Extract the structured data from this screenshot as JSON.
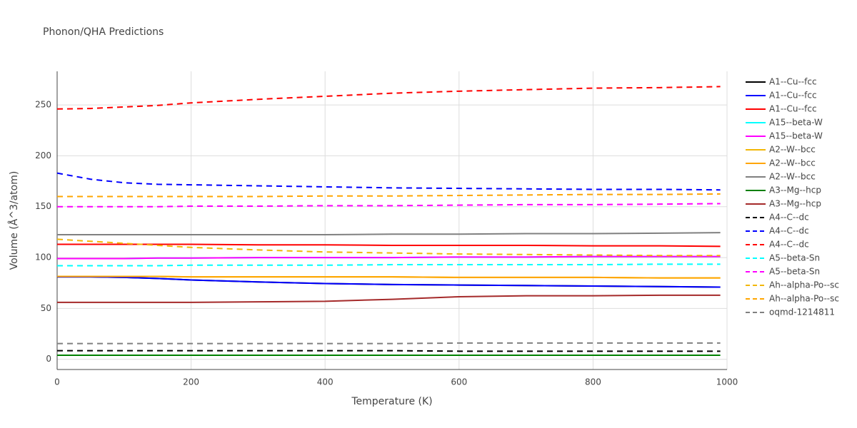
{
  "chart_data": {
    "type": "line",
    "title": "Phonon/QHA Predictions",
    "x_label": "Temperature (K)",
    "y_label": "Volume (Å^3/atom)",
    "x": [
      0,
      50,
      100,
      150,
      200,
      300,
      400,
      500,
      600,
      700,
      800,
      900,
      990
    ],
    "xlim": [
      0,
      1000
    ],
    "xticks": [
      0,
      200,
      400,
      600,
      800,
      1000
    ],
    "ylim": [
      -10,
      283
    ],
    "yticks": [
      0,
      50,
      100,
      150,
      200,
      250
    ],
    "grid": true,
    "legend": "right",
    "series": [
      {
        "name": "A1--Cu--fcc",
        "color": "#000000",
        "dash": "solid",
        "values": [
          81,
          81,
          80.5,
          79.5,
          78,
          76,
          74.5,
          73.5,
          73,
          72.5,
          72,
          71.5,
          71
        ]
      },
      {
        "name": "A1--Cu--fcc",
        "color": "#0000ff",
        "dash": "solid",
        "values": [
          81,
          81,
          80.5,
          79.5,
          78,
          76,
          74.5,
          73.5,
          73,
          72.5,
          72,
          71.5,
          71
        ]
      },
      {
        "name": "A1--Cu--fcc",
        "color": "#ff0000",
        "dash": "solid",
        "values": [
          113,
          113,
          113,
          113,
          113,
          112.5,
          112.5,
          112,
          112,
          112,
          111.5,
          111.5,
          111
        ]
      },
      {
        "name": "A15--beta-W",
        "color": "#00ffff",
        "dash": "solid",
        "values": [
          99,
          99,
          99,
          99.5,
          99.5,
          100,
          100,
          100,
          100.5,
          100.5,
          101,
          101,
          101
        ]
      },
      {
        "name": "A15--beta-W",
        "color": "#ff00ff",
        "dash": "solid",
        "values": [
          99,
          99,
          99,
          99.5,
          99.5,
          100,
          100,
          100,
          100.5,
          100.5,
          101,
          101,
          101
        ]
      },
      {
        "name": "A2--W--bcc",
        "color": "#f2b705",
        "dash": "solid",
        "values": [
          81.5,
          81.5,
          81.5,
          81.5,
          81,
          81,
          81,
          81,
          80.5,
          80.5,
          80.5,
          80,
          80
        ]
      },
      {
        "name": "A2--W--bcc",
        "color": "#ffa500",
        "dash": "solid",
        "values": [
          81.5,
          81.5,
          81.5,
          81.5,
          81,
          81,
          81,
          81,
          80.5,
          80.5,
          80.5,
          80,
          80
        ]
      },
      {
        "name": "A2--W--bcc",
        "color": "#808080",
        "dash": "solid",
        "values": [
          122.5,
          122.5,
          122.5,
          122.5,
          122.5,
          122.5,
          122.5,
          123,
          123,
          123.5,
          123.5,
          124,
          124.5
        ]
      },
      {
        "name": "A3--Mg--hcp",
        "color": "#008000",
        "dash": "solid",
        "values": [
          4,
          4,
          4,
          4,
          4,
          4,
          4,
          4,
          4,
          4,
          4,
          4,
          4
        ]
      },
      {
        "name": "A3--Mg--hcp",
        "color": "#a52a2a",
        "dash": "solid",
        "values": [
          56,
          56,
          56,
          56,
          56,
          56.5,
          57,
          59,
          61.5,
          62.5,
          62.5,
          63,
          63
        ]
      },
      {
        "name": "A4--C--dc",
        "color": "#000000",
        "dash": "dash",
        "values": [
          8.5,
          8.5,
          8.5,
          8.5,
          8.5,
          8.5,
          8.5,
          8.5,
          8,
          8,
          8,
          8,
          8
        ]
      },
      {
        "name": "A4--C--dc",
        "color": "#0000ff",
        "dash": "dash",
        "values": [
          183,
          177,
          173.5,
          172,
          171.5,
          170.5,
          169.5,
          168.5,
          168,
          167.5,
          167,
          167,
          166.5
        ]
      },
      {
        "name": "A4--C--dc",
        "color": "#ff0000",
        "dash": "dash",
        "values": [
          246,
          246.5,
          248,
          249.5,
          252,
          255.5,
          258.5,
          261.5,
          263.5,
          265,
          266.5,
          267,
          268
        ]
      },
      {
        "name": "A5--beta-Sn",
        "color": "#00ffff",
        "dash": "dash",
        "values": [
          92,
          92,
          92,
          92,
          92.5,
          92.5,
          92.5,
          93,
          93,
          93,
          93,
          93.5,
          93.5
        ]
      },
      {
        "name": "A5--beta-Sn",
        "color": "#ff00ff",
        "dash": "dash",
        "values": [
          150,
          150,
          150,
          150,
          150.5,
          150.5,
          151,
          151,
          151.5,
          152,
          152,
          152.5,
          153
        ]
      },
      {
        "name": "Ah--alpha-Po--sc",
        "color": "#f2b705",
        "dash": "dash",
        "values": [
          118,
          116,
          114,
          112,
          110,
          107.5,
          105.5,
          104.5,
          103.5,
          103,
          102.5,
          102,
          102
        ]
      },
      {
        "name": "Ah--alpha-Po--sc",
        "color": "#ffa500",
        "dash": "dash",
        "values": [
          160,
          160,
          160,
          160,
          160,
          160,
          160.5,
          160.5,
          161,
          161.5,
          162,
          162,
          162.5
        ]
      },
      {
        "name": "oqmd-1214811",
        "color": "#808080",
        "dash": "dash",
        "values": [
          15.5,
          15.5,
          15.5,
          15.5,
          15.5,
          15.5,
          15.5,
          15.5,
          16,
          16,
          16,
          16,
          16
        ]
      }
    ]
  }
}
